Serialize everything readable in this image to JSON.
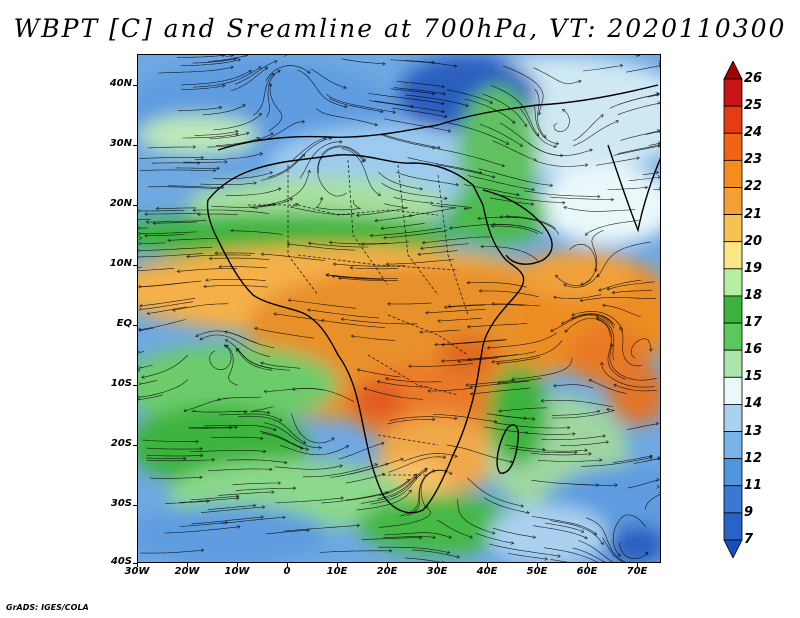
{
  "title": "WBPT [C] and Sreamline at 700hPa, VT: 2020110300",
  "footer": "GrADS: IGES/COLA",
  "map": {
    "lat_labels": [
      "40N",
      "30N",
      "20N",
      "10N",
      "EQ",
      "10S",
      "20S",
      "30S",
      "40S"
    ],
    "lon_labels": [
      "30W",
      "20W",
      "10W",
      "0",
      "10E",
      "20E",
      "30E",
      "40E",
      "50E",
      "60E",
      "70E"
    ],
    "lon_range": [
      -30,
      75
    ],
    "lat_range": [
      -40,
      45
    ]
  },
  "colorbar": {
    "labels": [
      "26",
      "25",
      "24",
      "23",
      "22",
      "21",
      "20",
      "19",
      "18",
      "17",
      "16",
      "15",
      "14",
      "13",
      "12",
      "11",
      "9",
      "7"
    ],
    "colors": [
      "#a00000",
      "#c81414",
      "#e63c14",
      "#f06414",
      "#f58c1e",
      "#f5a032",
      "#f5c350",
      "#fae682",
      "#b4f0a0",
      "#3cb43c",
      "#5ac85a",
      "#aae6aa",
      "#eaf8fa",
      "#aad2f0",
      "#78b4e6",
      "#5096dc",
      "#3c78d2",
      "#2864c8",
      "#1450be"
    ]
  }
}
